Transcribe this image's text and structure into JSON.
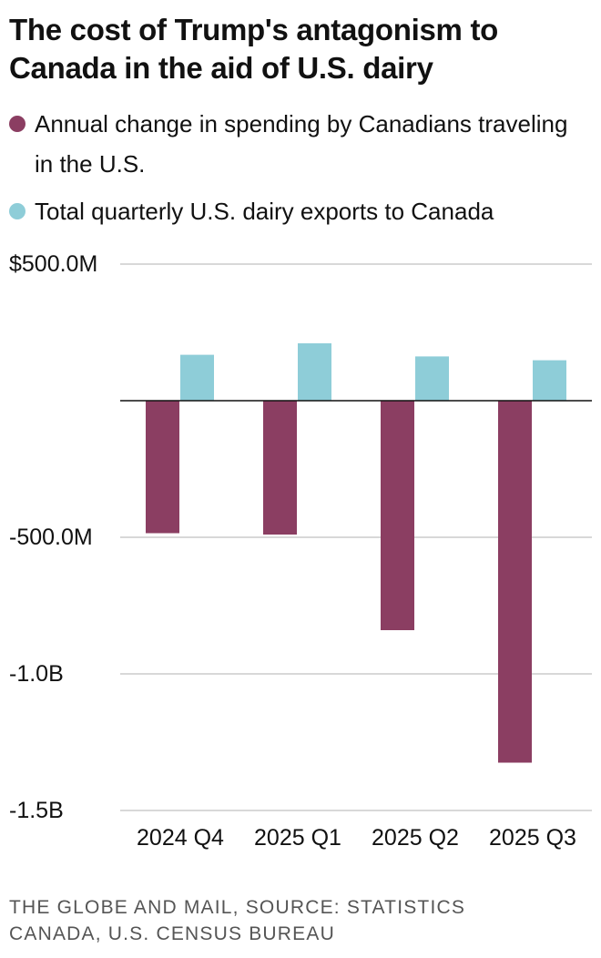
{
  "colors": {
    "spending": "#8B3E62",
    "dairy": "#8ECDD8",
    "grid": "#CCCCCC",
    "zero": "#111111"
  },
  "chart_data": {
    "type": "bar",
    "title": "The cost of Trump's antagonism to Canada in the aid of U.S. dairy",
    "categories": [
      "2024 Q4",
      "2025 Q1",
      "2025 Q2",
      "2025 Q3"
    ],
    "series": [
      {
        "name": "Annual change in spending by Canadians traveling in the U.S.",
        "key": "spending",
        "values": [
          -485,
          -490,
          -840,
          -1325
        ]
      },
      {
        "name": "Total quarterly U.S. dairy exports to Canada",
        "key": "dairy",
        "values": [
          168,
          210,
          162,
          148
        ]
      }
    ],
    "y_ticks": [
      {
        "value": 500,
        "label": "$500.0M"
      },
      {
        "value": 0,
        "label": ""
      },
      {
        "value": -500,
        "label": "-500.0M"
      },
      {
        "value": -1000,
        "label": "-1.0B"
      },
      {
        "value": -1500,
        "label": "-1.5B"
      }
    ],
    "ylim": [
      -1500,
      500
    ],
    "xlabel": "",
    "ylabel": ""
  },
  "footer": "THE GLOBE AND MAIL, SOURCE: STATISTICS CANADA, U.S. CENSUS BUREAU"
}
